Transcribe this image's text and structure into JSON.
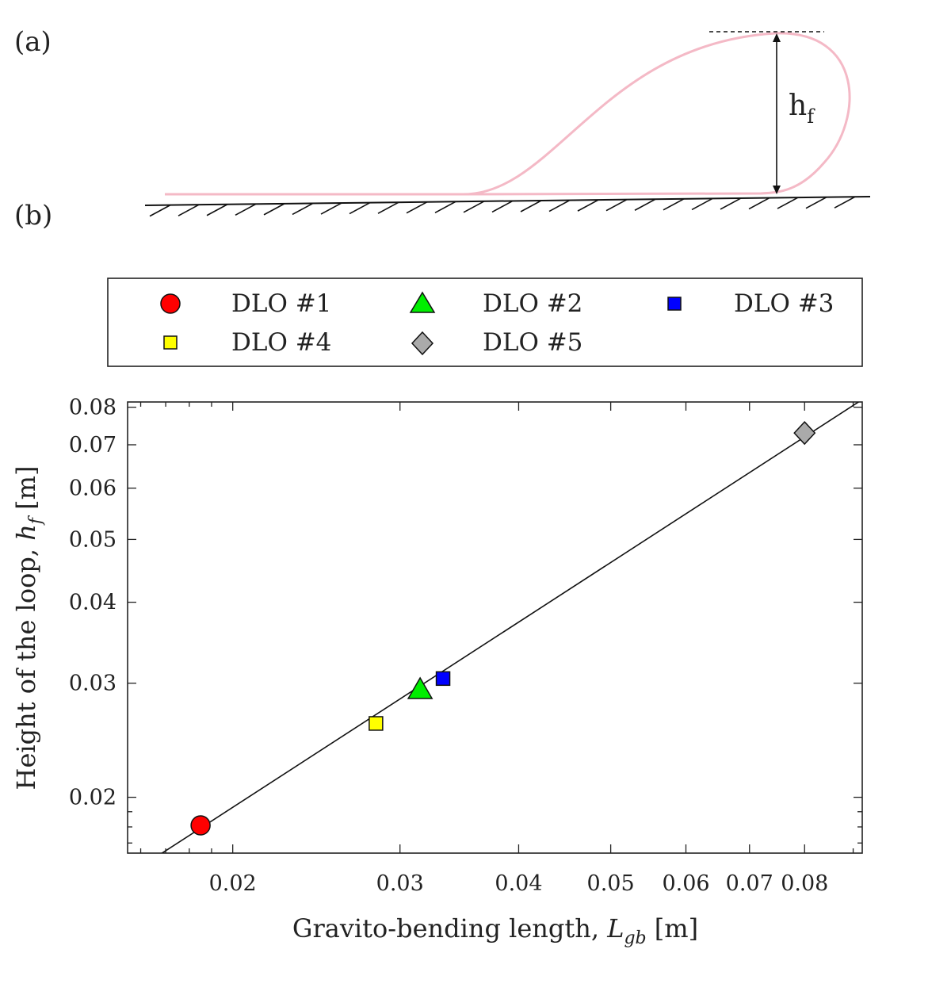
{
  "panels": {
    "a_label": "(a)",
    "b_label": "(b)"
  },
  "schematic": {
    "height_label_main": "h",
    "height_label_sub": "f",
    "loop_color": "#f4b9c6"
  },
  "chart_data": {
    "type": "scatter",
    "scale": "log-log",
    "xlabel": "Gravito-bending length, L_gb [m]",
    "ylabel": "Height of the loop, h_f [m]",
    "xlabel_parts": {
      "text": "Gravito-bending length, ",
      "sym": "L",
      "sub": "gb",
      "unit": " [m]"
    },
    "ylabel_parts": {
      "text": "Height of the loop, ",
      "sym": "h",
      "sub": "f",
      "unit": " [m]"
    },
    "xlim": [
      0.0155,
      0.092
    ],
    "ylim": [
      0.0164,
      0.0815
    ],
    "xticks": [
      0.02,
      0.03,
      0.04,
      0.05,
      0.06,
      0.07,
      0.08
    ],
    "xtick_labels": [
      "0.02",
      "0.03",
      "0.04",
      "0.05",
      "0.06",
      "0.07",
      "0.08"
    ],
    "yticks": [
      0.02,
      0.03,
      0.04,
      0.05,
      0.06,
      0.07,
      0.08
    ],
    "ytick_labels": [
      "0.02",
      "0.03",
      "0.04",
      "0.05",
      "0.06",
      "0.07",
      "0.08"
    ],
    "legend_position": "top (above axes, 3 columns)",
    "series": [
      {
        "name": "DLO #1",
        "marker": "circle",
        "color": "#ff0000",
        "x": 0.0185,
        "y": 0.0181
      },
      {
        "name": "DLO #2",
        "marker": "triangle",
        "color": "#00ee00",
        "x": 0.0315,
        "y": 0.0293
      },
      {
        "name": "DLO #3",
        "marker": "square",
        "color": "#0000ff",
        "x": 0.0333,
        "y": 0.0305
      },
      {
        "name": "DLO #4",
        "marker": "square",
        "color": "#ffff00",
        "x": 0.0283,
        "y": 0.026
      },
      {
        "name": "DLO #5",
        "marker": "diamond",
        "color": "#aaaaaa",
        "x": 0.08,
        "y": 0.073
      }
    ],
    "fit_line": {
      "slope_loglog": 1.0,
      "x_start": 0.0155,
      "y_start": 0.01515,
      "x_end": 0.092,
      "y_end": 0.0822
    }
  }
}
